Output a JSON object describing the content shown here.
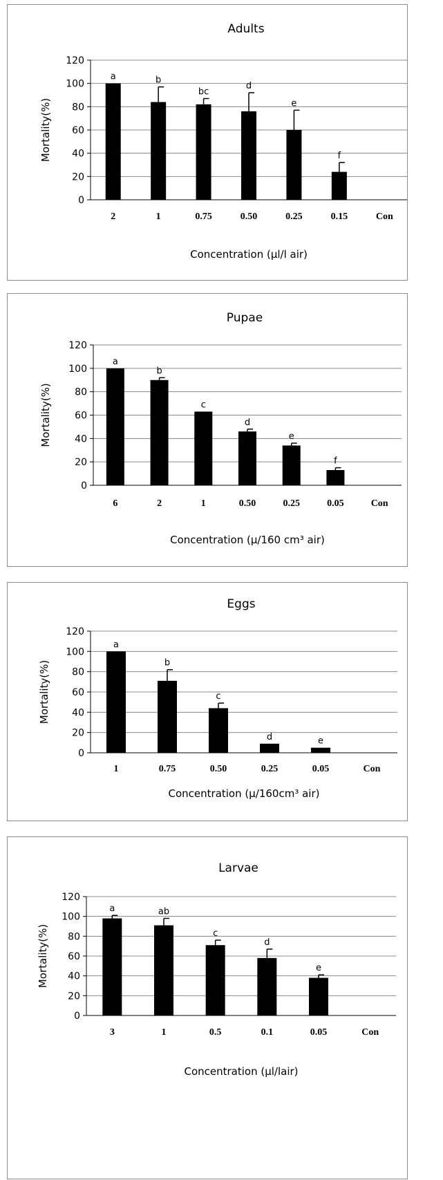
{
  "chart_data": [
    {
      "type": "bar",
      "title": "Adults",
      "ylabel": "Mortality(%)",
      "xlabel": "Concentration (µl/l air)",
      "ylim": [
        0,
        120
      ],
      "yticks": [
        0,
        20,
        40,
        60,
        80,
        100,
        120
      ],
      "grid": true,
      "categories": [
        "2",
        "1",
        "0.75",
        "0.50",
        "0.25",
        "0.15",
        "Con"
      ],
      "values": [
        100,
        84,
        82,
        76,
        60,
        24,
        0
      ],
      "errors": [
        0,
        13,
        5,
        16,
        17,
        8,
        0
      ],
      "letters": [
        "a",
        "b",
        "bc",
        "d",
        "e",
        "f",
        ""
      ],
      "bar_color": "#000000"
    },
    {
      "type": "bar",
      "title": "Pupae",
      "ylabel": "Mortality(%)",
      "xlabel": "Concentration (µ/160 cm³ air)",
      "ylim": [
        0,
        120
      ],
      "yticks": [
        0,
        20,
        40,
        60,
        80,
        100,
        120
      ],
      "grid": true,
      "categories": [
        "6",
        "2",
        "1",
        "0.50",
        "0.25",
        "0.05",
        "Con"
      ],
      "values": [
        100,
        90,
        63,
        46,
        34,
        13,
        0
      ],
      "errors": [
        0,
        2,
        0,
        2,
        2,
        2,
        0
      ],
      "letters": [
        "a",
        "b",
        "c",
        "d",
        "e",
        "f",
        ""
      ],
      "bar_color": "#000000"
    },
    {
      "type": "bar",
      "title": "Eggs",
      "ylabel": "Mortality(%)",
      "xlabel": "Concentration (µ/160cm³ air)",
      "ylim": [
        0,
        120
      ],
      "yticks": [
        0,
        20,
        40,
        60,
        80,
        100,
        120
      ],
      "grid": true,
      "categories": [
        "1",
        "0.75",
        "0.50",
        "0.25",
        "0.05",
        "Con"
      ],
      "values": [
        100,
        71,
        44,
        9,
        5,
        0
      ],
      "errors": [
        0,
        11,
        5,
        0,
        0,
        0
      ],
      "letters": [
        "a",
        "b",
        "c",
        "d",
        "e",
        ""
      ],
      "bar_color": "#000000"
    },
    {
      "type": "bar",
      "title": "Larvae",
      "ylabel": "Mortality(%)",
      "xlabel": "Concentration (µl/lair)",
      "ylim": [
        0,
        120
      ],
      "yticks": [
        0,
        20,
        40,
        60,
        80,
        100,
        120
      ],
      "grid": true,
      "categories": [
        "3",
        "1",
        "0.5",
        "0.1",
        "0.05",
        "Con"
      ],
      "values": [
        98,
        91,
        71,
        58,
        38,
        0
      ],
      "errors": [
        3,
        7,
        5,
        9,
        3,
        0
      ],
      "letters": [
        "a",
        "ab",
        "c",
        "d",
        "e",
        ""
      ],
      "bar_color": "#000000"
    }
  ]
}
